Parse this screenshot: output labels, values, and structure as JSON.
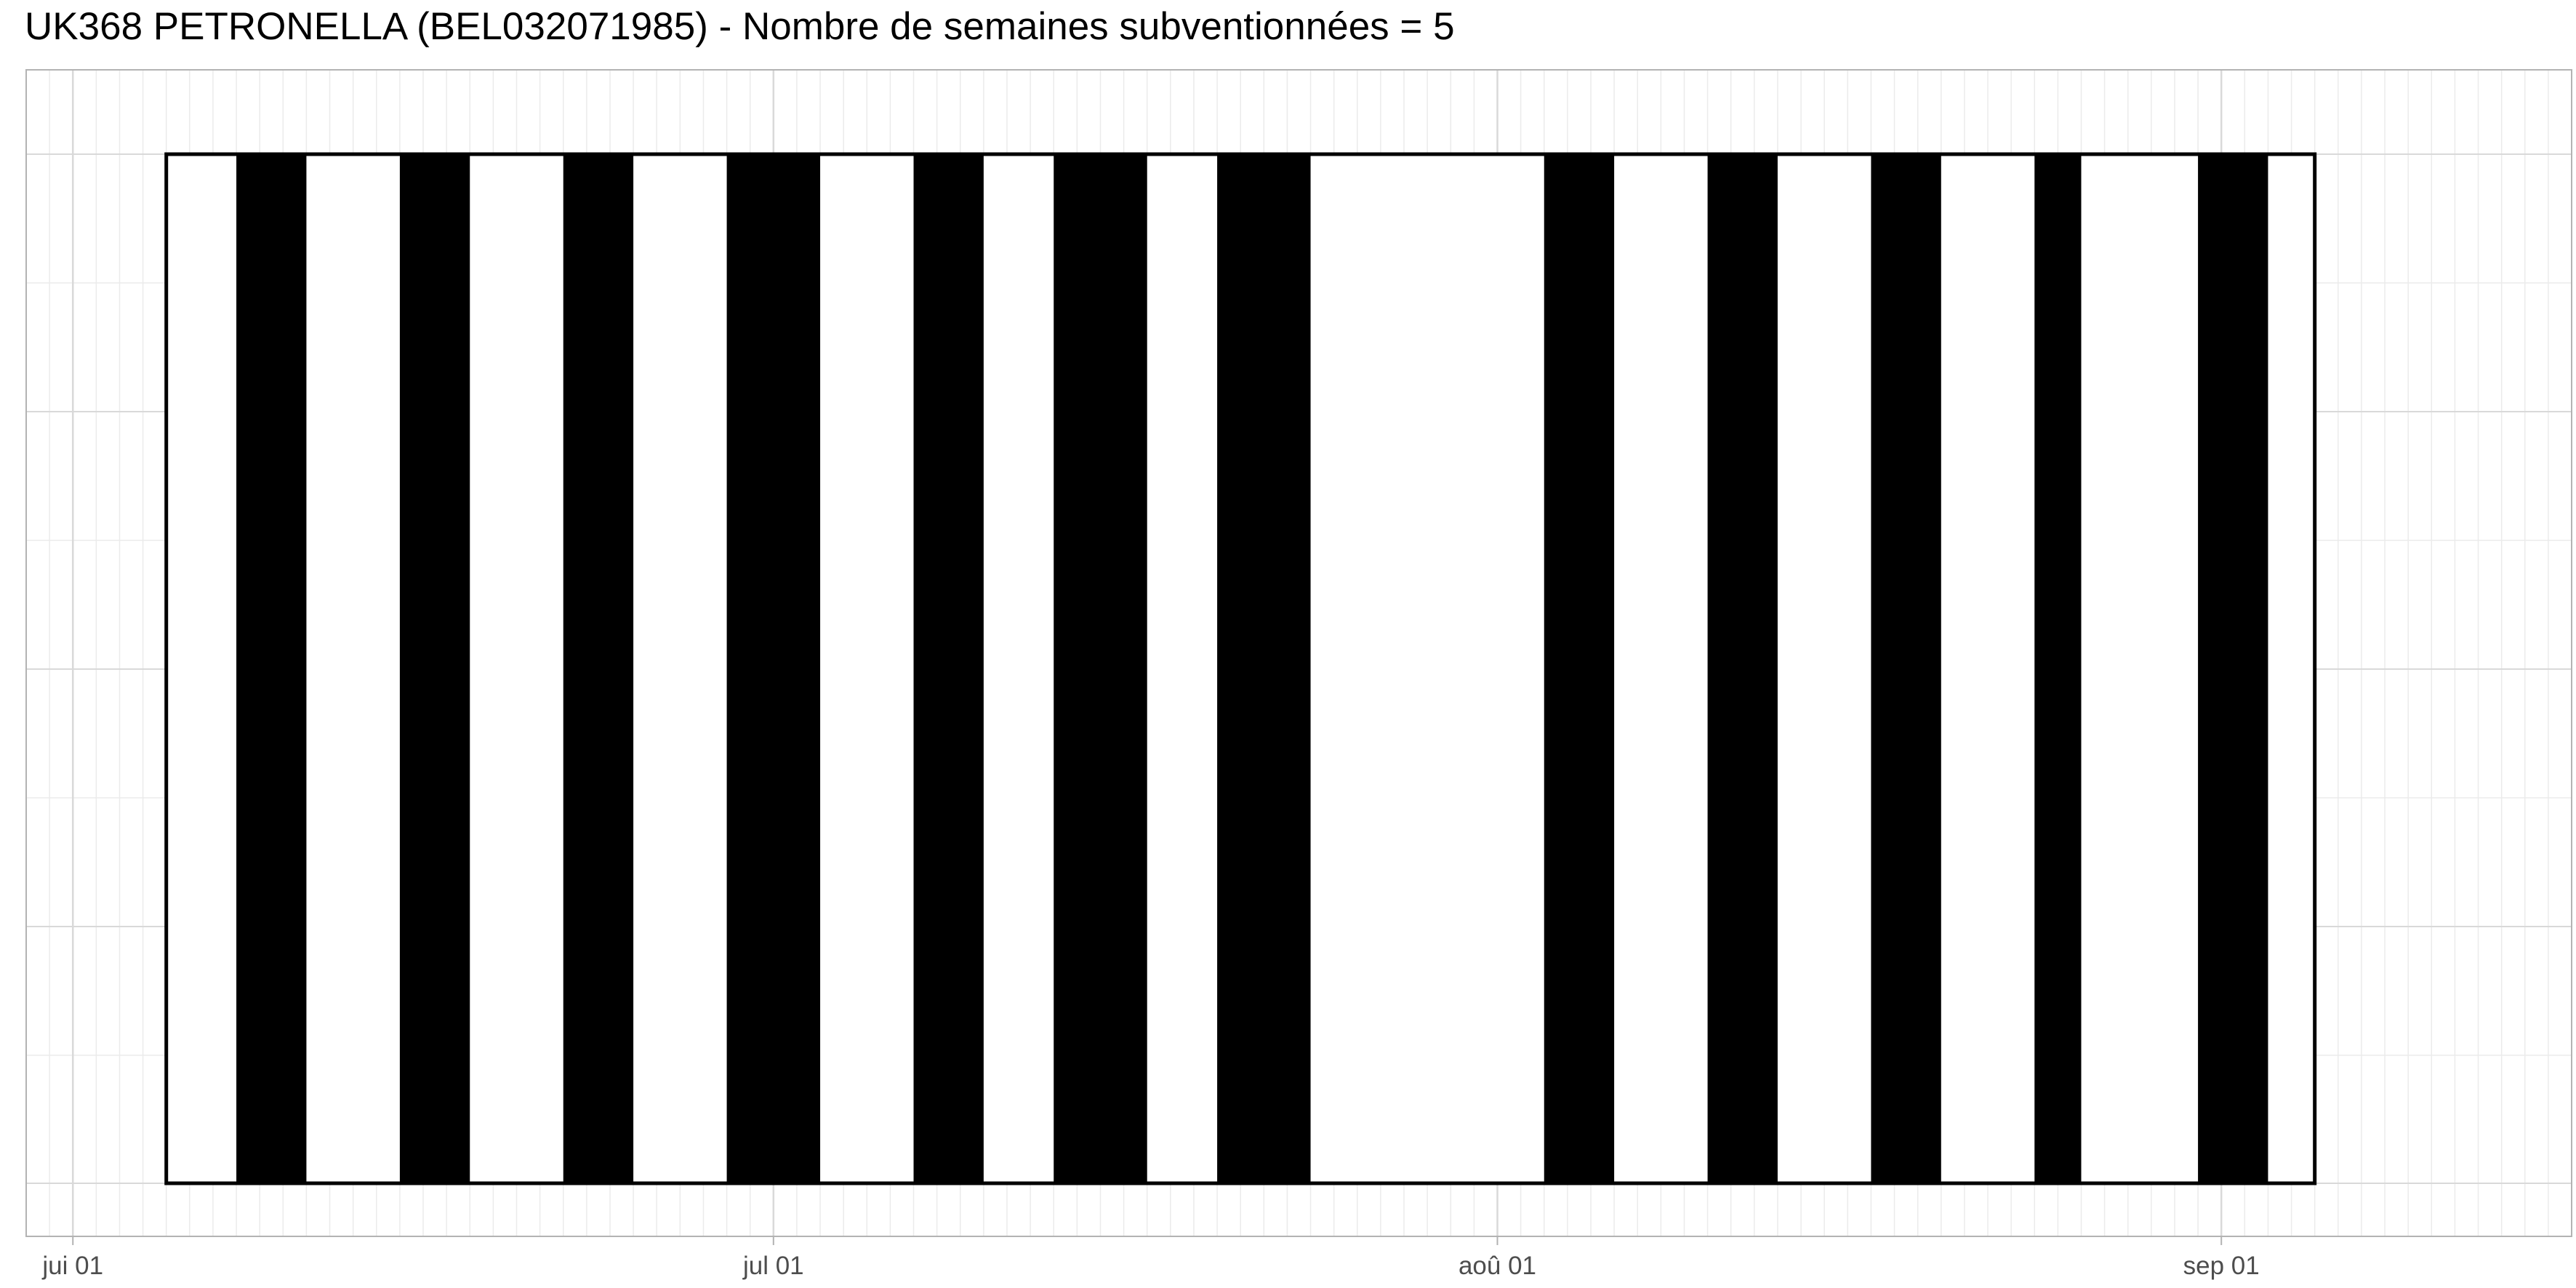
{
  "chart_data": {
    "type": "bar",
    "title": "UK368 PETRONELLA (BEL032071985) - Nombre de semaines subventionnées = 5",
    "xlabel": "",
    "ylabel": "",
    "x_axis": {
      "type": "date",
      "range": [
        "2017-05-30",
        "2017-09-16"
      ],
      "ticks": [
        {
          "date": "2017-06-01",
          "label": "jui 01"
        },
        {
          "date": "2017-07-01",
          "label": "jul 01"
        },
        {
          "date": "2017-08-01",
          "label": "aoû 01"
        },
        {
          "date": "2017-09-01",
          "label": "sep 01"
        }
      ]
    },
    "period": {
      "start": "2017-06-05",
      "end": "2017-09-05"
    },
    "segments": [
      {
        "start": "2017-06-08",
        "end": "2017-06-11",
        "status": "filled"
      },
      {
        "start": "2017-06-15",
        "end": "2017-06-18",
        "status": "filled"
      },
      {
        "start": "2017-06-22",
        "end": "2017-06-25",
        "status": "filled"
      },
      {
        "start": "2017-06-29",
        "end": "2017-07-03",
        "status": "filled"
      },
      {
        "start": "2017-07-07",
        "end": "2017-07-10",
        "status": "filled"
      },
      {
        "start": "2017-07-13",
        "end": "2017-07-17",
        "status": "filled"
      },
      {
        "start": "2017-07-20",
        "end": "2017-07-24",
        "status": "filled"
      },
      {
        "start": "2017-08-03",
        "end": "2017-08-06",
        "status": "filled"
      },
      {
        "start": "2017-08-10",
        "end": "2017-08-13",
        "status": "filled"
      },
      {
        "start": "2017-08-17",
        "end": "2017-08-20",
        "status": "filled"
      },
      {
        "start": "2017-08-24",
        "end": "2017-08-26",
        "status": "filled"
      },
      {
        "start": "2017-08-31",
        "end": "2017-09-03",
        "status": "filled"
      }
    ],
    "grid": true,
    "legend": "none",
    "colors": {
      "filled": "#000000",
      "empty": "#ffffff",
      "outline": "#000000",
      "grid_major": "#d9d9d9",
      "grid_minor": "#ebebeb",
      "panel_border": "#b3b3b3"
    }
  }
}
